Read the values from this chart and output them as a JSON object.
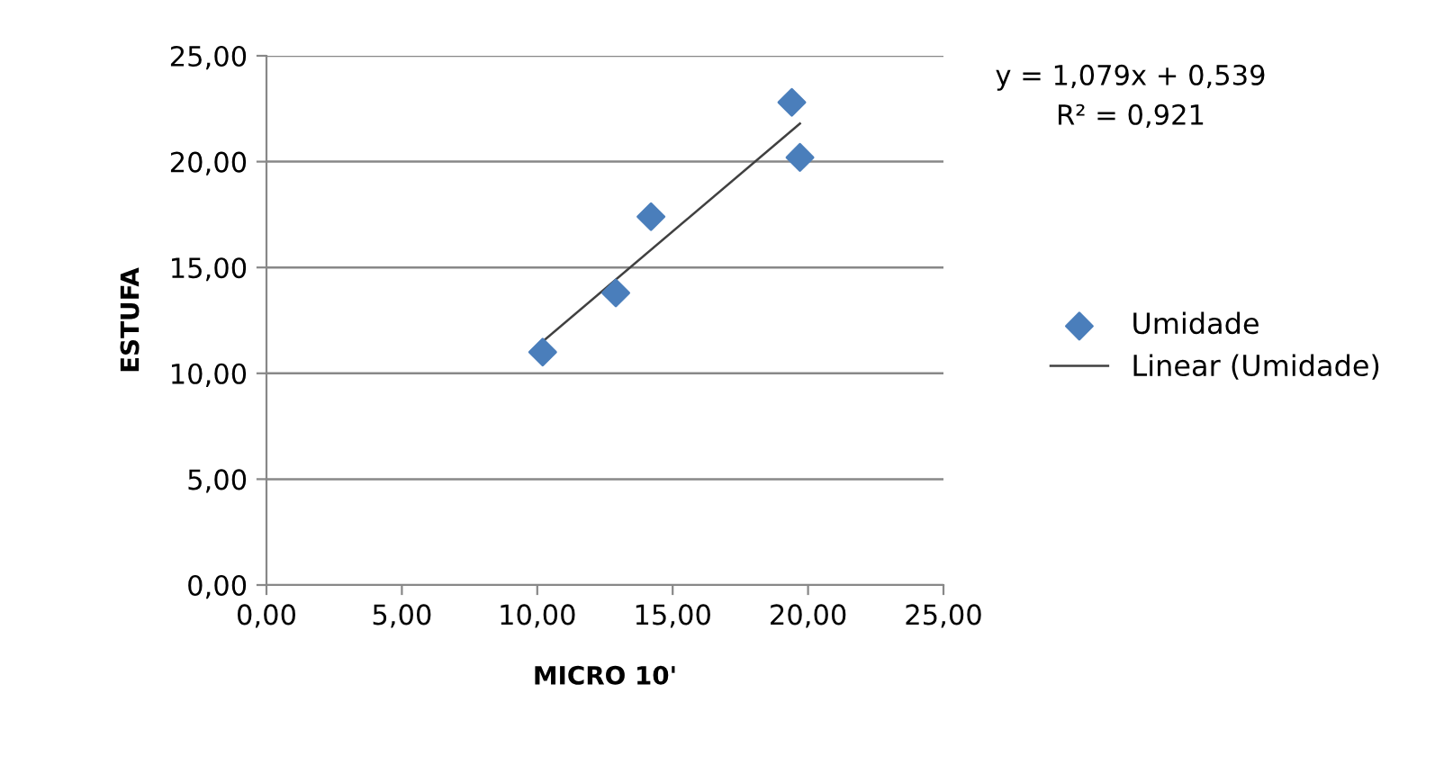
{
  "chart_data": {
    "type": "scatter",
    "xlabel": "MICRO 10'",
    "ylabel": "ESTUFA",
    "series": [
      {
        "name": "Umidade",
        "color": "#4a7ebb",
        "marker": "diamond",
        "x": [
          10.2,
          12.9,
          14.2,
          19.4,
          19.7
        ],
        "values": [
          11.0,
          13.8,
          17.4,
          22.8,
          20.2
        ]
      },
      {
        "name": "Linear (Umidade)",
        "type": "line",
        "color": "#404040",
        "marker": "none",
        "line_style": "solid",
        "x": [
          10.2,
          19.7
        ],
        "values": [
          11.5,
          21.8
        ]
      }
    ],
    "annotations": [
      "y = 1,079x + 0,539",
      "R² = 0,921"
    ],
    "xlim": [
      0,
      25
    ],
    "ylim": [
      0,
      25
    ],
    "xticks": [
      {
        "value": 0,
        "label": "0,00"
      },
      {
        "value": 5,
        "label": "5,00"
      },
      {
        "value": 10,
        "label": "10,00"
      },
      {
        "value": 15,
        "label": "15,00"
      },
      {
        "value": 20,
        "label": "20,00"
      },
      {
        "value": 25,
        "label": "25,00"
      }
    ],
    "yticks": [
      {
        "value": 0,
        "label": "0,00"
      },
      {
        "value": 5,
        "label": "5,00"
      },
      {
        "value": 10,
        "label": "10,00"
      },
      {
        "value": 15,
        "label": "15,00"
      },
      {
        "value": 20,
        "label": "20,00"
      },
      {
        "value": 25,
        "label": "25,00"
      }
    ],
    "grid": "y",
    "legend": "right"
  }
}
